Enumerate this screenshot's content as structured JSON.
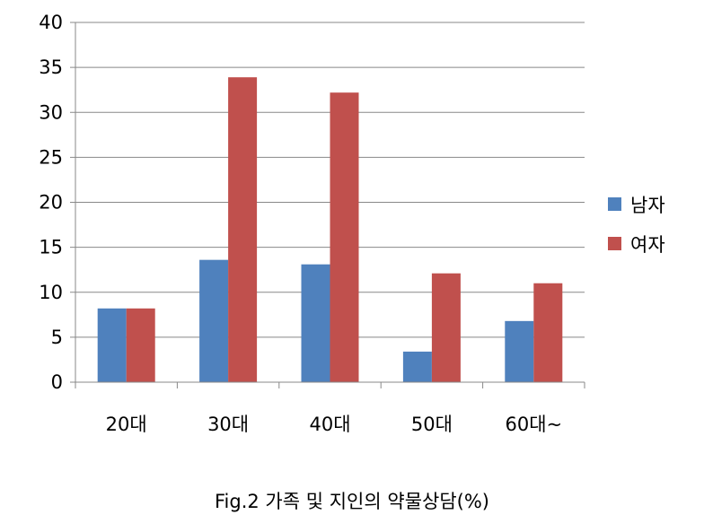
{
  "chart_data": {
    "type": "bar",
    "categories": [
      "20대",
      "30대",
      "40대",
      "50대",
      "60대~"
    ],
    "series": [
      {
        "name": "남자",
        "values": [
          8.2,
          13.6,
          13.1,
          3.4,
          6.8
        ],
        "color": "#4F81BD"
      },
      {
        "name": "여자",
        "values": [
          8.2,
          33.9,
          32.2,
          12.1,
          11.0
        ],
        "color": "#C0504D"
      }
    ],
    "ylim": [
      0,
      40
    ],
    "yticks": [
      0,
      5,
      10,
      15,
      20,
      25,
      30,
      35,
      40
    ],
    "grid": true,
    "legend": "right",
    "caption": "Fig.2 가족 및 지인의 약물상담(%)"
  }
}
